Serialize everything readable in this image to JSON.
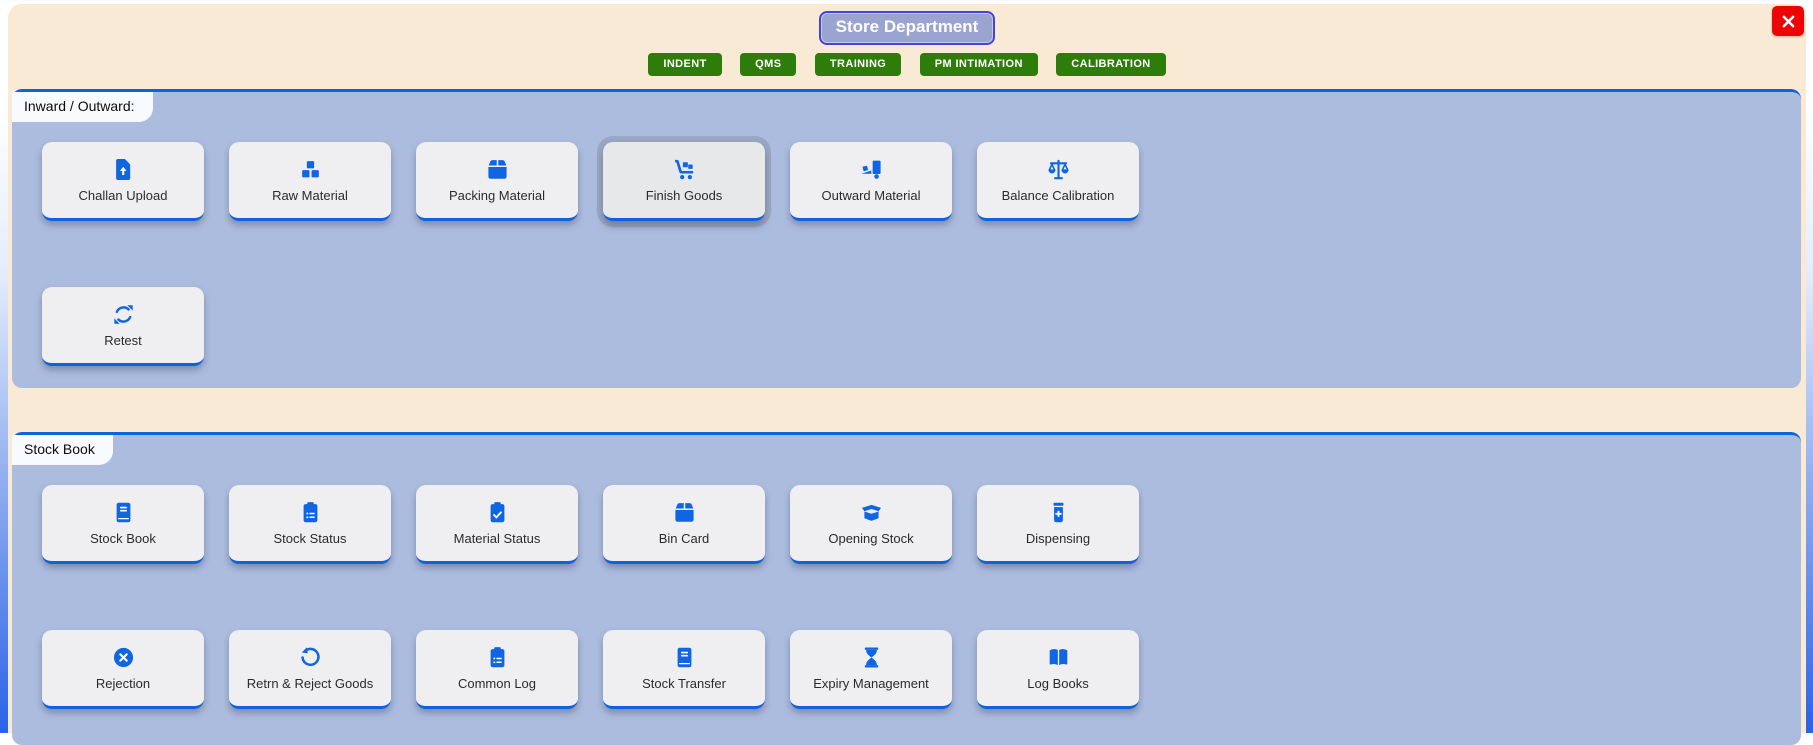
{
  "colors": {
    "accent_blue": "#1065e3",
    "nav_green": "#2e7d0a",
    "cream_background": "#f8ead4",
    "panel_blue": "#acbcde",
    "close_red": "#ee0405",
    "title_background": "#9ba4d0",
    "title_border": "#4643da"
  },
  "header": {
    "title": "Store Department"
  },
  "nav": {
    "buttons": [
      "INDENT",
      "QMS",
      "TRAINING",
      "PM INTIMATION",
      "CALIBRATION"
    ]
  },
  "sections": [
    {
      "tab": "Inward / Outward:",
      "rows": [
        [
          {
            "label": "Challan Upload",
            "icon": "file-upload"
          },
          {
            "label": "Raw Material",
            "icon": "cubes"
          },
          {
            "label": "Packing Material",
            "icon": "box"
          },
          {
            "label": "Finish Goods",
            "icon": "dolly",
            "state": "hover"
          },
          {
            "label": "Outward Material",
            "icon": "truck-ramp-box"
          },
          {
            "label": "Balance Calibration",
            "icon": "balance-scale"
          }
        ],
        [
          {
            "label": "Retest",
            "icon": "sync"
          }
        ]
      ]
    },
    {
      "tab": "Stock Book",
      "rows": [
        [
          {
            "label": "Stock Book",
            "icon": "book"
          },
          {
            "label": "Stock Status",
            "icon": "clipboard-list"
          },
          {
            "label": "Material Status",
            "icon": "clipboard-check"
          },
          {
            "label": "Bin Card",
            "icon": "box"
          },
          {
            "label": "Opening Stock",
            "icon": "box-open"
          },
          {
            "label": "Dispensing",
            "icon": "prescription-bottle"
          }
        ],
        [
          {
            "label": "Rejection",
            "icon": "circle-xmark"
          },
          {
            "label": "Retrn & Reject Goods",
            "icon": "undo"
          },
          {
            "label": "Common Log",
            "icon": "clipboard-list"
          },
          {
            "label": "Stock Transfer",
            "icon": "book"
          },
          {
            "label": "Expiry Management",
            "icon": "hourglass"
          },
          {
            "label": "Log Books",
            "icon": "book-open"
          }
        ]
      ]
    }
  ]
}
